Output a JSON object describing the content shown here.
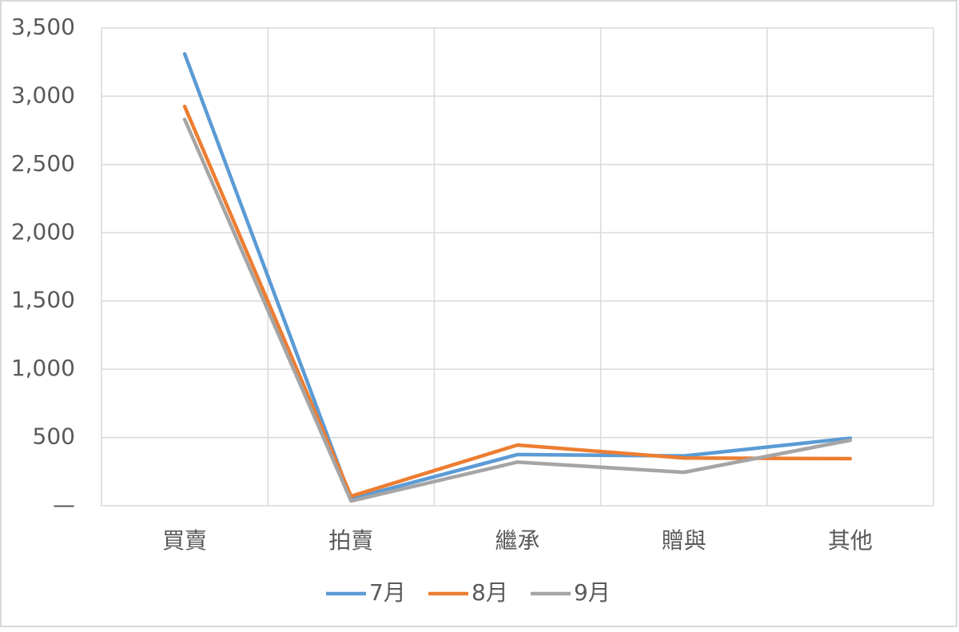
{
  "chart_data": {
    "type": "line",
    "categories": [
      "買賣",
      "拍賣",
      "繼承",
      "贈與",
      "其他"
    ],
    "series": [
      {
        "name": "7月",
        "color": "#5b9bd5",
        "values": [
          3310,
          50,
          375,
          365,
          495
        ]
      },
      {
        "name": "8月",
        "color": "#ed7d31",
        "values": [
          2925,
          70,
          445,
          350,
          345
        ]
      },
      {
        "name": "9月",
        "color": "#a5a5a5",
        "values": [
          2830,
          35,
          320,
          245,
          480
        ]
      }
    ],
    "ylim": [
      0,
      3500
    ],
    "yticks": [
      {
        "value": 0,
        "label": "—"
      },
      {
        "value": 500,
        "label": "500"
      },
      {
        "value": 1000,
        "label": "1,000"
      },
      {
        "value": 1500,
        "label": "1,500"
      },
      {
        "value": 2000,
        "label": "2,000"
      },
      {
        "value": 2500,
        "label": "2,500"
      },
      {
        "value": 3000,
        "label": "3,000"
      },
      {
        "value": 3500,
        "label": "3,500"
      }
    ],
    "grid": true,
    "legend": "bottom"
  }
}
